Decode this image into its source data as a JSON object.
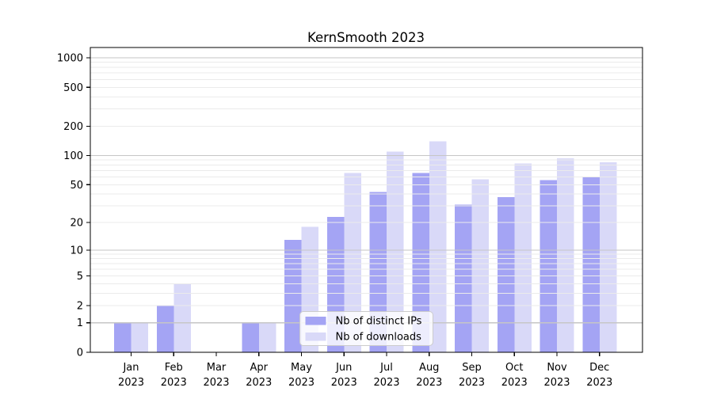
{
  "chart_data": {
    "type": "bar",
    "title": "KernSmooth 2023",
    "xlabel": "",
    "ylabel": "",
    "categories": [
      "Jan",
      "Feb",
      "Mar",
      "Apr",
      "May",
      "Jun",
      "Jul",
      "Aug",
      "Sep",
      "Oct",
      "Nov",
      "Dec"
    ],
    "category_year": "2023",
    "series": [
      {
        "name": "Nb of distinct IPs",
        "color": "#a4a4f4",
        "values": [
          1,
          2,
          0,
          1,
          13,
          23,
          42,
          66,
          31,
          37,
          56,
          61
        ]
      },
      {
        "name": "Nb of downloads",
        "color": "#d9d9f8",
        "values": [
          1,
          4,
          0,
          1,
          18,
          66,
          110,
          140,
          57,
          83,
          94,
          85
        ]
      }
    ],
    "y_axis": {
      "scale": "log1p",
      "tick_values": [
        0,
        1,
        2,
        5,
        10,
        20,
        50,
        100,
        200,
        500,
        1000
      ],
      "tick_labels": [
        "0",
        "1",
        "2",
        "5",
        "10",
        "20",
        "50",
        "100",
        "200",
        "500",
        "1000"
      ],
      "range_top_value": 1250
    },
    "grid": {
      "on": true,
      "major_values": [
        1,
        10,
        100,
        1000
      ],
      "minor_values": [
        2,
        3,
        4,
        5,
        6,
        7,
        8,
        9,
        20,
        30,
        40,
        50,
        60,
        70,
        80,
        90,
        200,
        300,
        400,
        500,
        600,
        700,
        800,
        900
      ],
      "major_color": "#c6c6c6",
      "minor_color": "#ebebeb"
    },
    "legend": {
      "position": "lower center",
      "background": "#ffffff",
      "border_color": "#cccccc",
      "items": [
        "Nb of distinct IPs",
        "Nb of downloads"
      ]
    },
    "colors": {
      "background": "#ffffff",
      "spine": "#000000",
      "text": "#000000"
    }
  }
}
